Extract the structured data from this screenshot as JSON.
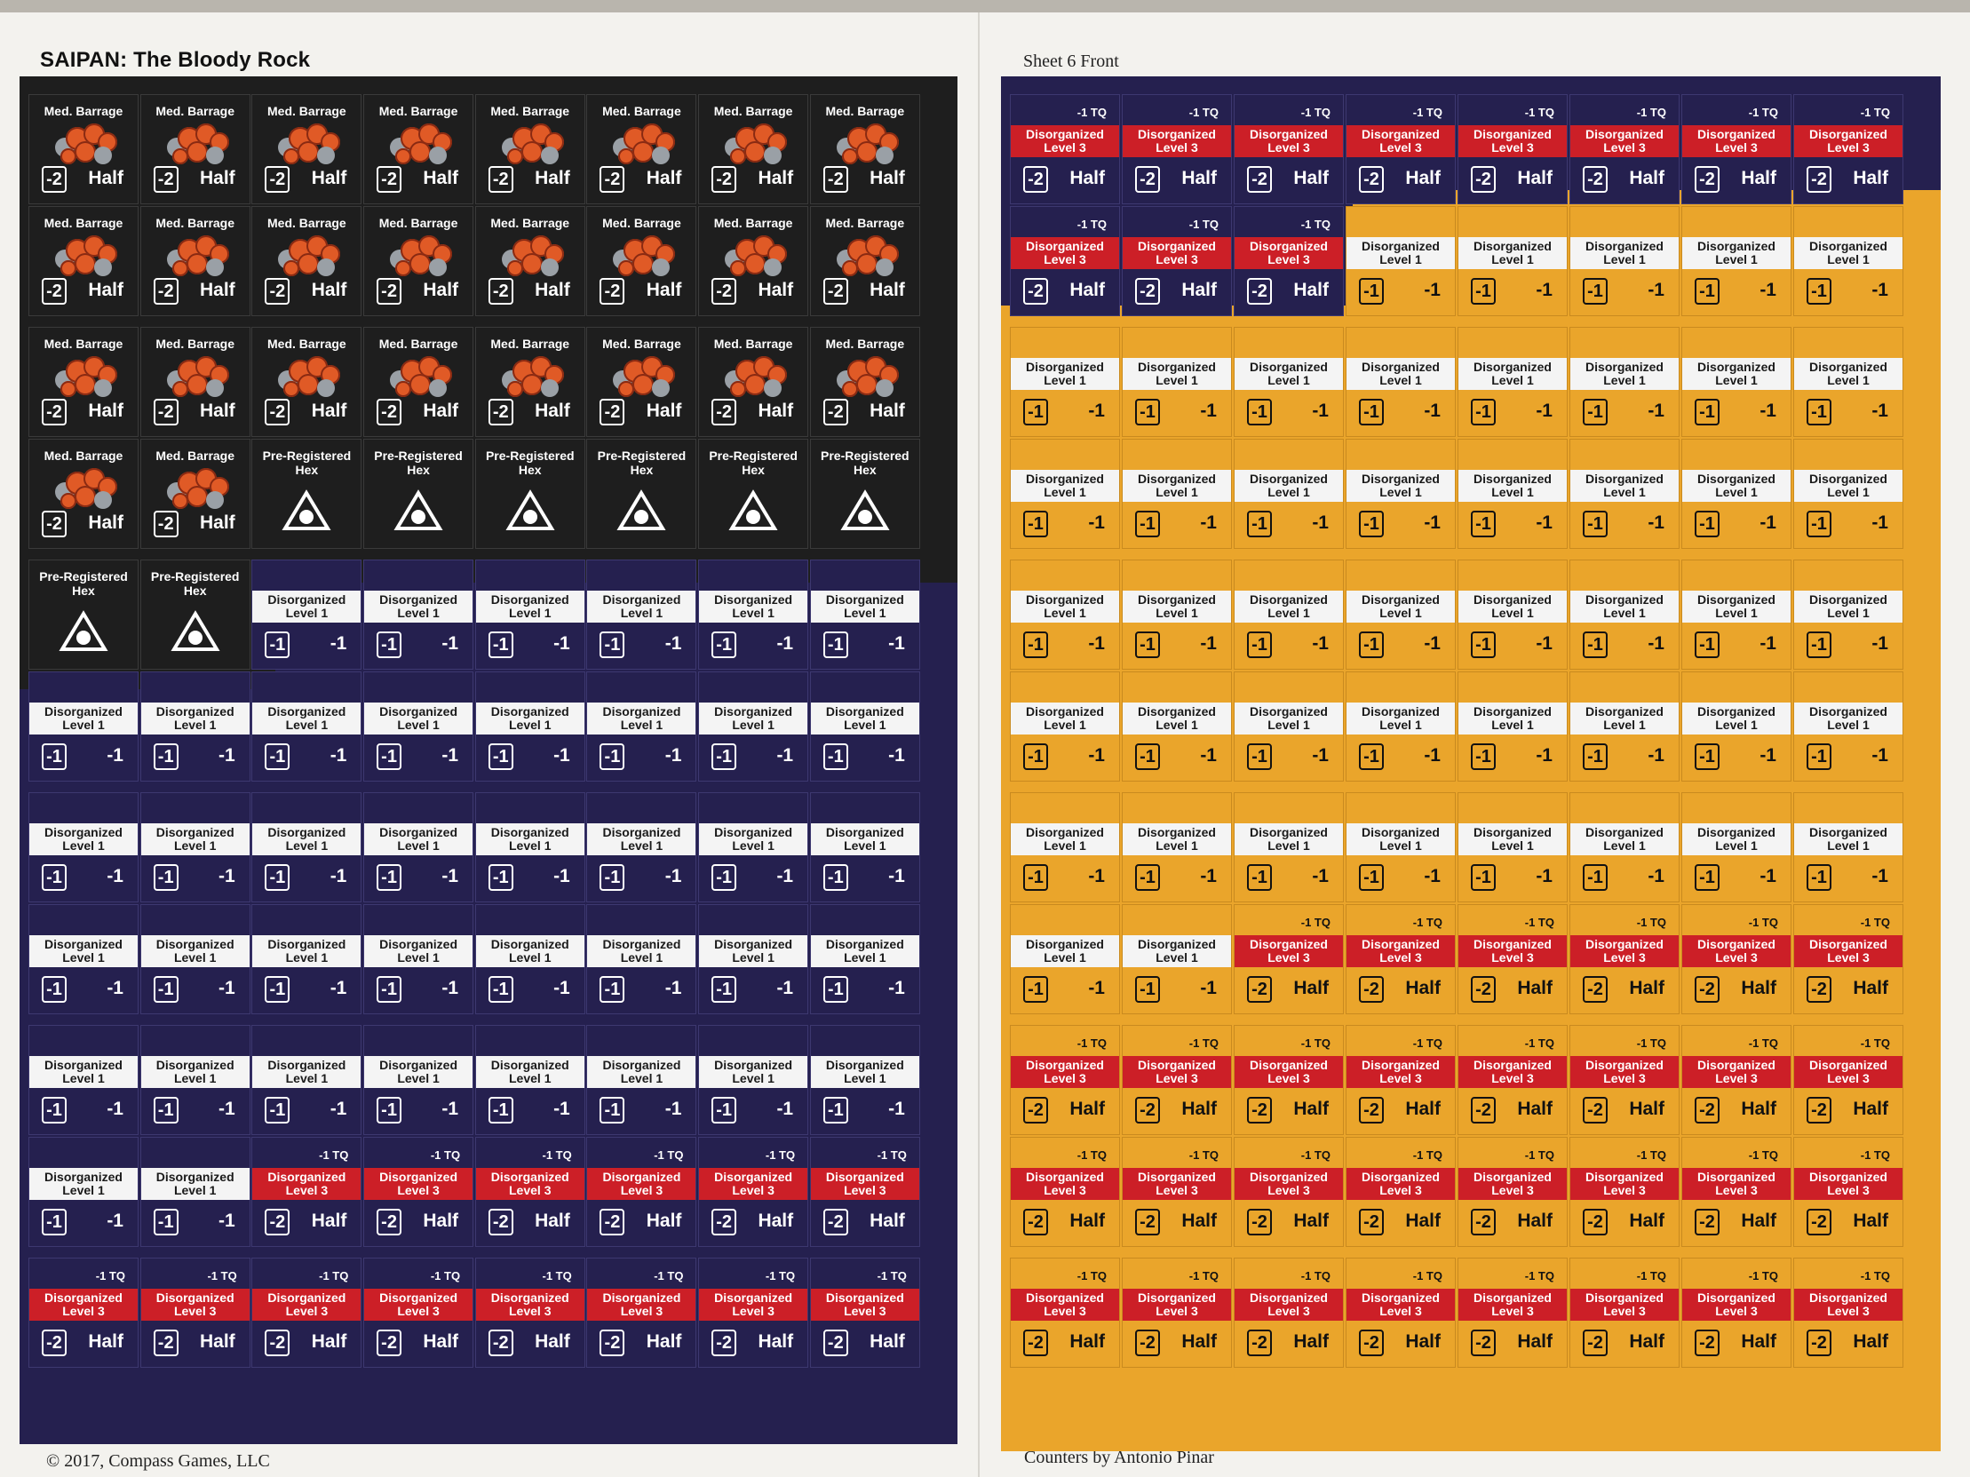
{
  "sheet": {
    "title": "SAIPAN: The Bloody Rock",
    "sheet_label": "Sheet 6 Front",
    "copyright": "© 2017, Compass Games, LLC",
    "credit": "Counters by Antonio Pinar"
  },
  "counter_types": {
    "barrage": {
      "name": "Med. Barrage",
      "modifier": "-2",
      "effect": "Half",
      "color": "#1e1e1e",
      "icon": "explosion-icon"
    },
    "prereg": {
      "name": "Pre-Registered Hex",
      "color": "#1e1e1e",
      "icon": "triangle-target-icon"
    },
    "dis1": {
      "name": "Disorganized Level 1",
      "modifier": "-1",
      "effect": "-1"
    },
    "dis3": {
      "name": "Disorganized Level 3",
      "tq": "-1 TQ",
      "modifier": "-2",
      "effect": "Half"
    }
  },
  "colors": {
    "black": "#1e1e1e",
    "navy": "#25204f",
    "gold": "#eaa52b",
    "red_band": "#cc1f27",
    "white_band": "#f4f4f4"
  },
  "left_sheet": {
    "rows": [
      [
        "barrage",
        "barrage",
        "barrage",
        "barrage",
        "barrage",
        "barrage",
        "barrage",
        "barrage"
      ],
      [
        "barrage",
        "barrage",
        "barrage",
        "barrage",
        "barrage",
        "barrage",
        "barrage",
        "barrage"
      ],
      [
        "barrage",
        "barrage",
        "barrage",
        "barrage",
        "barrage",
        "barrage",
        "barrage",
        "barrage"
      ],
      [
        "barrage",
        "barrage",
        "prereg",
        "prereg",
        "prereg",
        "prereg",
        "prereg",
        "prereg"
      ],
      [
        "prereg",
        "prereg",
        "dis1",
        "dis1",
        "dis1",
        "dis1",
        "dis1",
        "dis1"
      ],
      [
        "dis1",
        "dis1",
        "dis1",
        "dis1",
        "dis1",
        "dis1",
        "dis1",
        "dis1"
      ],
      [
        "dis1",
        "dis1",
        "dis1",
        "dis1",
        "dis1",
        "dis1",
        "dis1",
        "dis1"
      ],
      [
        "dis1",
        "dis1",
        "dis1",
        "dis1",
        "dis1",
        "dis1",
        "dis1",
        "dis1"
      ],
      [
        "dis1",
        "dis1",
        "dis1",
        "dis1",
        "dis1",
        "dis1",
        "dis1",
        "dis1"
      ],
      [
        "dis1",
        "dis1",
        "dis3",
        "dis3",
        "dis3",
        "dis3",
        "dis3",
        "dis3"
      ],
      [
        "dis3",
        "dis3",
        "dis3",
        "dis3",
        "dis3",
        "dis3",
        "dis3",
        "dis3"
      ]
    ],
    "disorganized_color": "navy"
  },
  "right_sheet": {
    "rows": [
      [
        "dis3",
        "dis3",
        "dis3",
        "dis3",
        "dis3",
        "dis3",
        "dis3",
        "dis3"
      ],
      [
        "dis3",
        "dis3",
        "dis3",
        "dis1",
        "dis1",
        "dis1",
        "dis1",
        "dis1"
      ],
      [
        "dis1",
        "dis1",
        "dis1",
        "dis1",
        "dis1",
        "dis1",
        "dis1",
        "dis1"
      ],
      [
        "dis1",
        "dis1",
        "dis1",
        "dis1",
        "dis1",
        "dis1",
        "dis1",
        "dis1"
      ],
      [
        "dis1",
        "dis1",
        "dis1",
        "dis1",
        "dis1",
        "dis1",
        "dis1",
        "dis1"
      ],
      [
        "dis1",
        "dis1",
        "dis1",
        "dis1",
        "dis1",
        "dis1",
        "dis1",
        "dis1"
      ],
      [
        "dis1",
        "dis1",
        "dis1",
        "dis1",
        "dis1",
        "dis1",
        "dis1",
        "dis1"
      ],
      [
        "dis1",
        "dis1",
        "dis3",
        "dis3",
        "dis3",
        "dis3",
        "dis3",
        "dis3"
      ],
      [
        "dis3",
        "dis3",
        "dis3",
        "dis3",
        "dis3",
        "dis3",
        "dis3",
        "dis3"
      ],
      [
        "dis3",
        "dis3",
        "dis3",
        "dis3",
        "dis3",
        "dis3",
        "dis3",
        "dis3"
      ],
      [
        "dis3",
        "dis3",
        "dis3",
        "dis3",
        "dis3",
        "dis3",
        "dis3",
        "dis3"
      ]
    ],
    "navy_cells": [
      [
        0,
        0
      ],
      [
        0,
        1
      ],
      [
        0,
        2
      ],
      [
        0,
        3
      ],
      [
        0,
        4
      ],
      [
        0,
        5
      ],
      [
        0,
        6
      ],
      [
        0,
        7
      ],
      [
        1,
        0
      ],
      [
        1,
        1
      ],
      [
        1,
        2
      ]
    ]
  }
}
